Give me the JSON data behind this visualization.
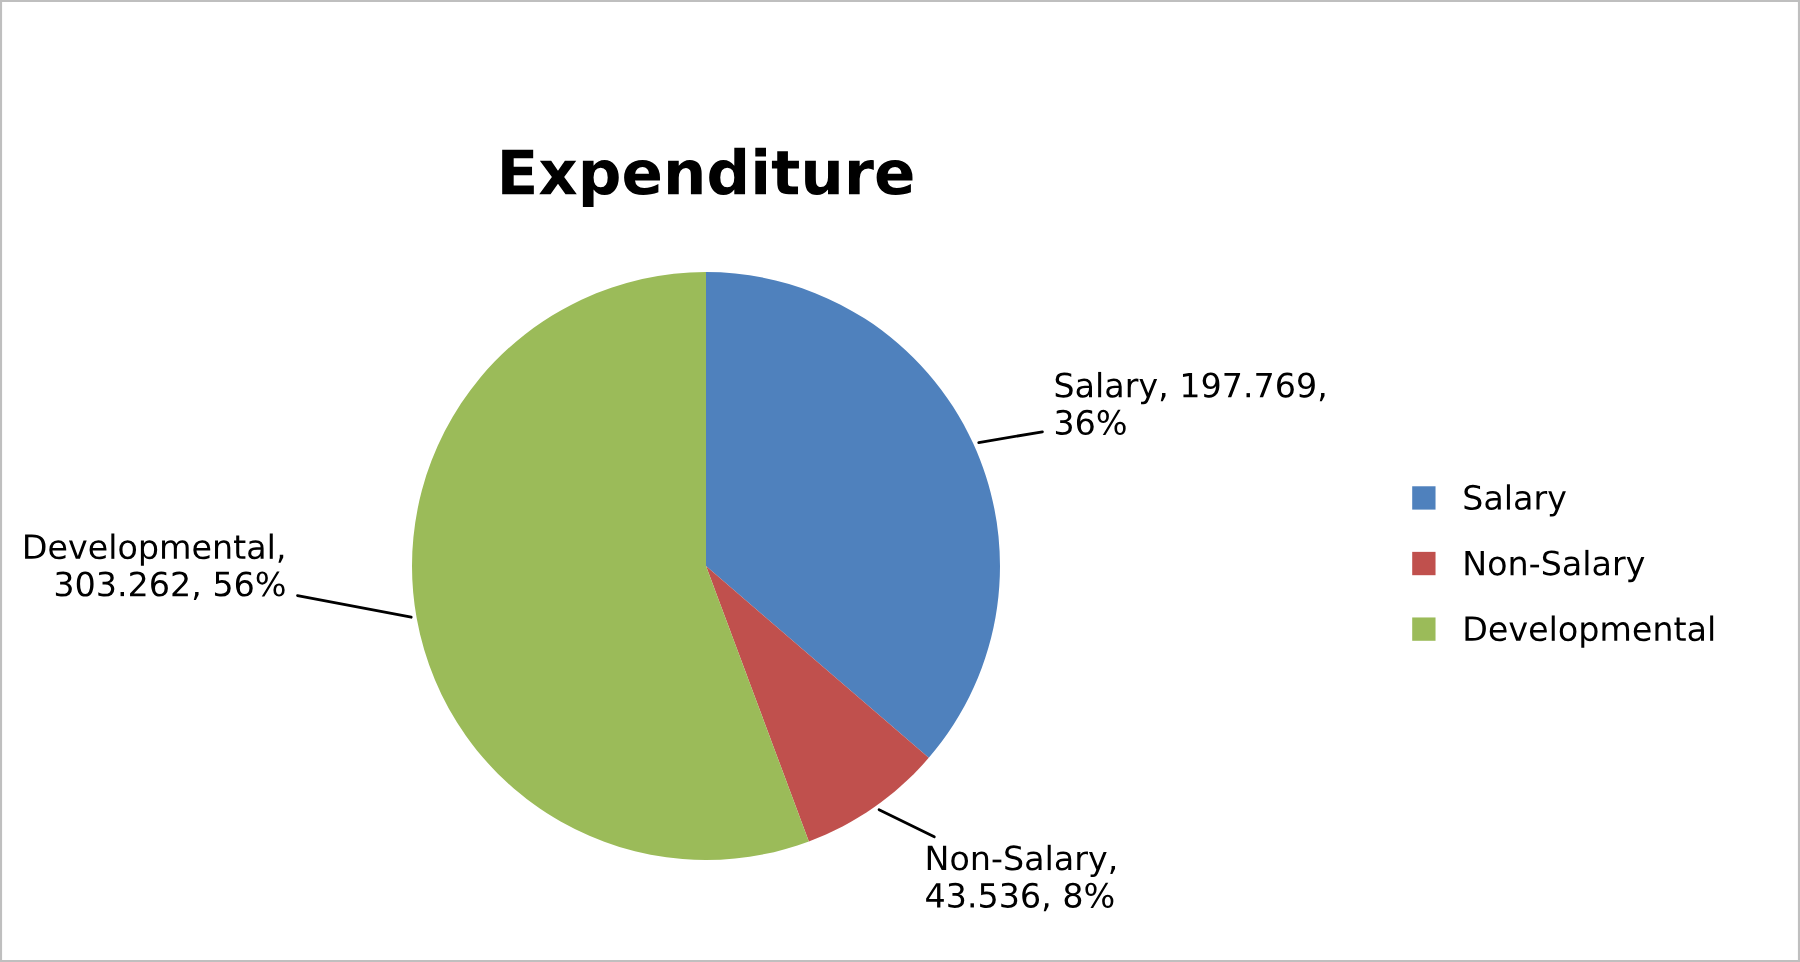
{
  "chart_data": {
    "type": "pie",
    "title": "Expenditure",
    "categories": [
      "Salary",
      "Non-Salary",
      "Developmental"
    ],
    "values": [
      197.769,
      43.536,
      303.262
    ],
    "colors": [
      "#4f81bd",
      "#c0504d",
      "#9bbb59"
    ],
    "value_labels": [
      "Salary, 197.769,\n36%",
      "Non-Salary,\n43.536, 8%",
      "Developmental,\n303.262, 56%"
    ],
    "legend": "right"
  }
}
